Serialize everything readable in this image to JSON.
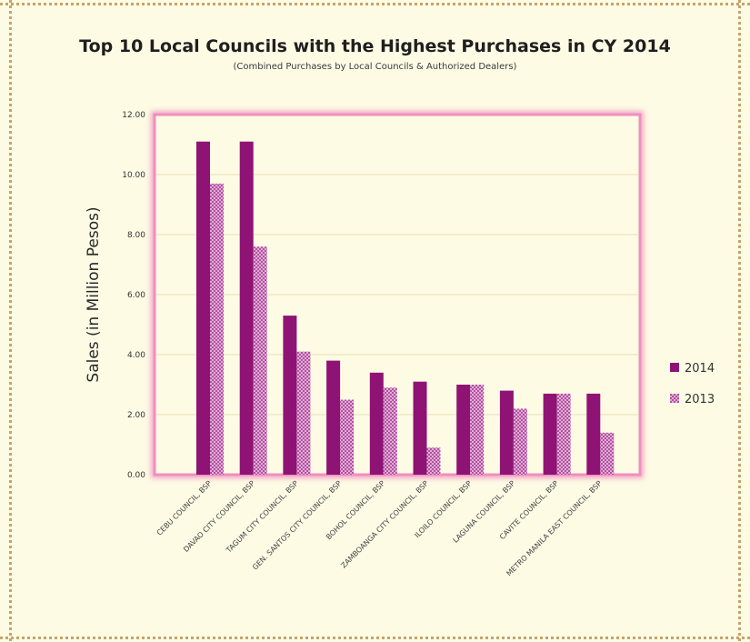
{
  "chart_data": {
    "type": "bar",
    "title": "Top 10 Local Councils with the Highest Purchases in CY 2014",
    "subtitle": "(Combined Purchases by Local Councils & Authorized Dealers)",
    "ylabel": "Sales (in Million Pesos)",
    "xlabel": "",
    "ylim": [
      0,
      12
    ],
    "yticks": [
      "0.00",
      "2.00",
      "4.00",
      "6.00",
      "8.00",
      "10.00",
      "12.00"
    ],
    "grid": true,
    "legend_position": "right",
    "categories": [
      "CEBU COUNCIL, BSP",
      "DAVAO CITY COUNCIL, BSP",
      "TAGUM CITY COUNCIL, BSP",
      "GEN. SANTOS CITY COUNCIL, BSP",
      "BOHOL COUNCIL, BSP",
      "ZAMBOANGA CITY COUNCIL, BSP",
      "ILOILO COUNCIL, BSP",
      "LAGUNA COUNCIL, BSP",
      "CAVITE COUNCIL, BSP",
      "METRO MANILA EAST COUNCIL, BSP"
    ],
    "series": [
      {
        "name": "2014",
        "color": "#8e1374",
        "values": [
          11.1,
          11.1,
          5.3,
          3.8,
          3.4,
          3.1,
          3.0,
          2.8,
          2.7,
          2.7
        ]
      },
      {
        "name": "2013",
        "color": "#d07cc0",
        "values": [
          9.7,
          7.6,
          4.1,
          2.5,
          2.9,
          0.9,
          3.0,
          2.2,
          2.7,
          1.4
        ]
      }
    ]
  }
}
